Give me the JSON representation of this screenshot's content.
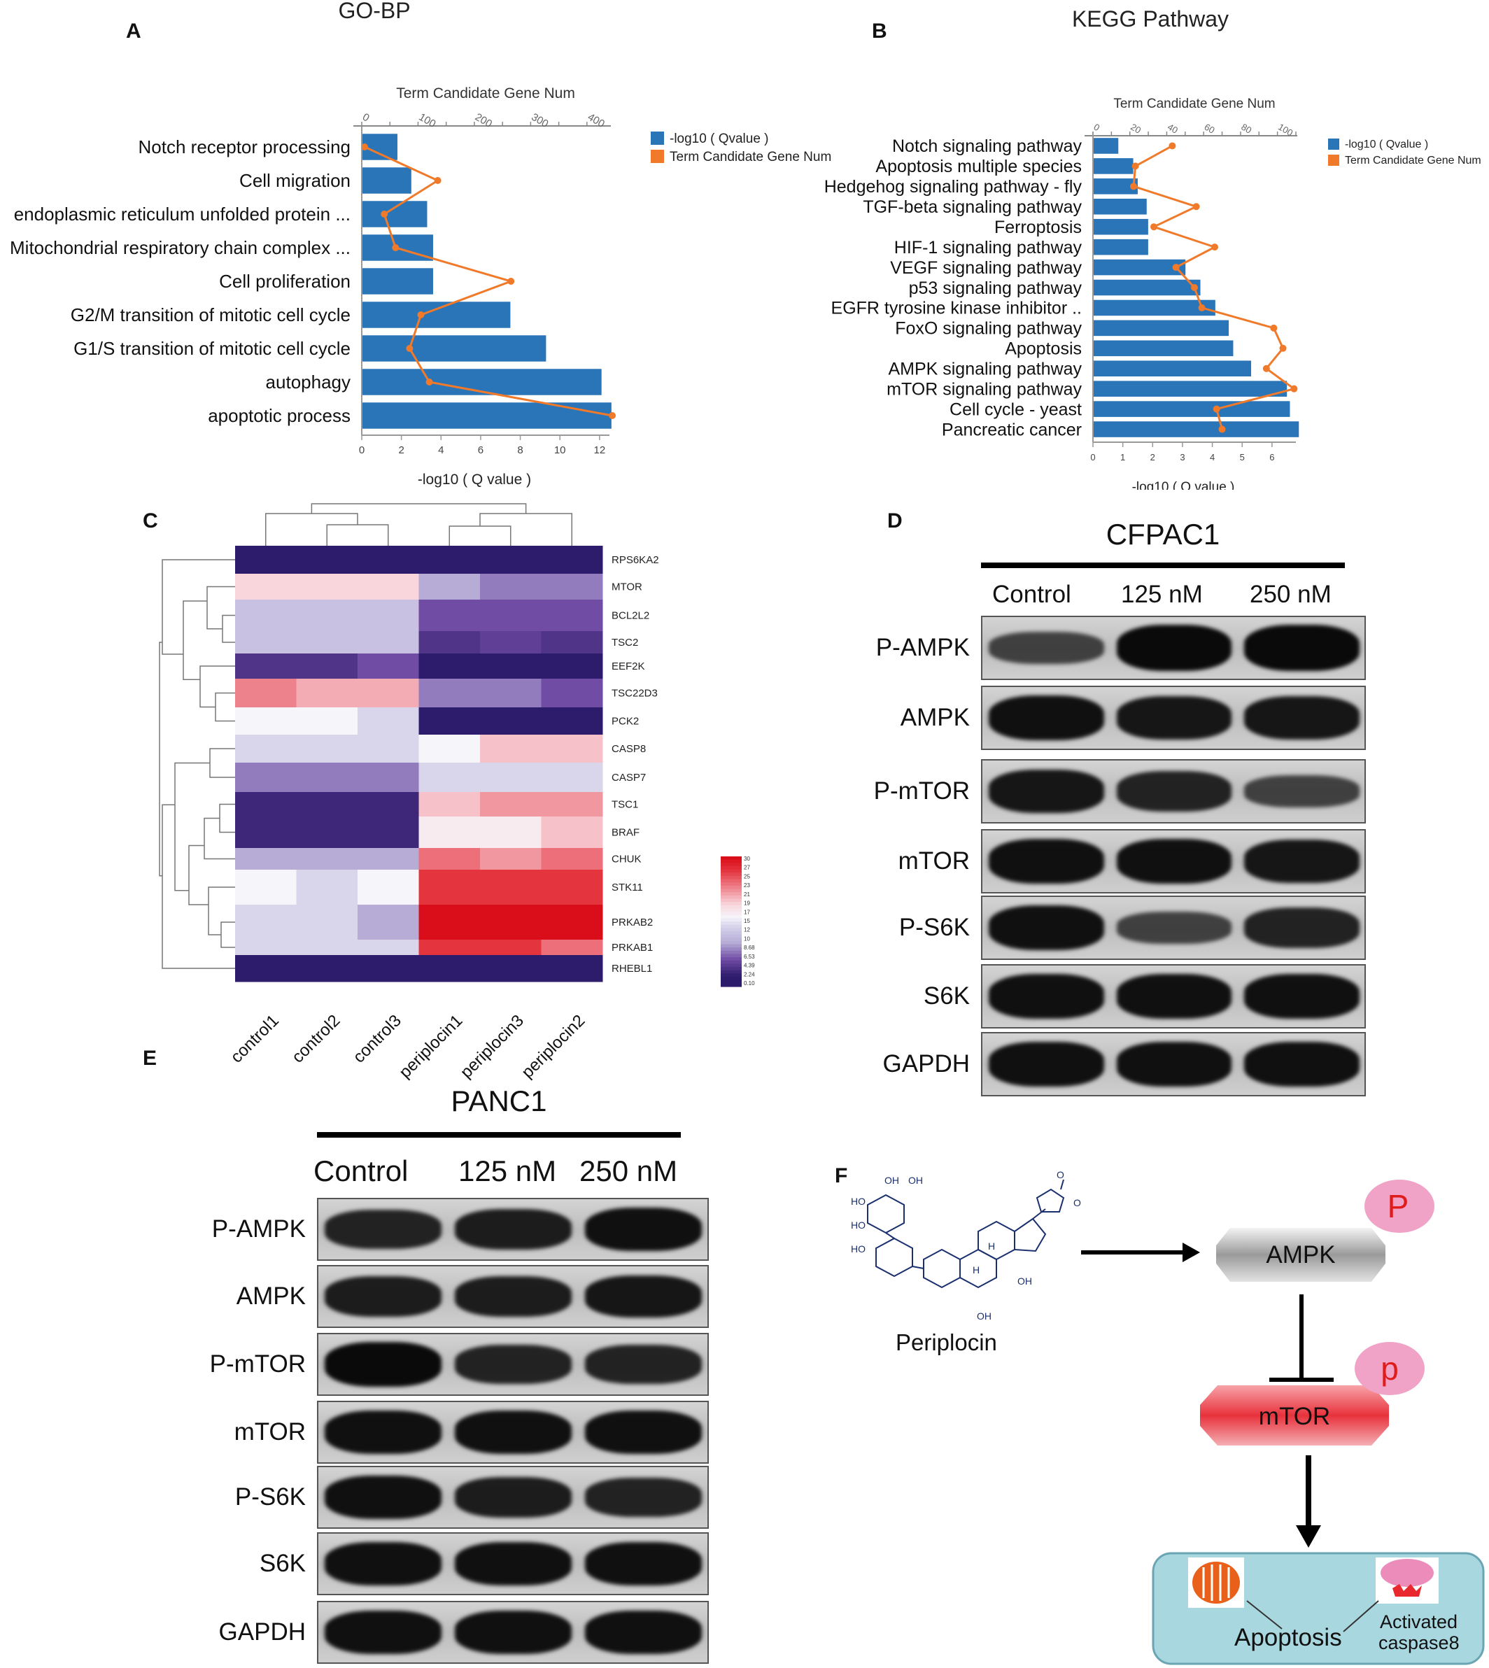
{
  "panels": {
    "A": "A",
    "B": "B",
    "C": "C",
    "D": "D",
    "E": "E",
    "F": "F"
  },
  "chart_data": [
    {
      "type": "bar",
      "panel": "A",
      "title": "GO-BP",
      "xlabel": "-log10 ( Q value )",
      "x2label": "Term Candidate Gene Num",
      "xlim": [
        0,
        12.5
      ],
      "x_ticks": [
        "0",
        "2",
        "4",
        "6",
        "8",
        "10",
        "12"
      ],
      "x2lim": [
        0,
        440
      ],
      "x2_ticks": [
        "0",
        "100",
        "200",
        "300",
        "400"
      ],
      "categories": [
        "Notch receptor processing",
        "Cell migration",
        "endoplasmic reticulum unfolded protein ...",
        "Mitochondrial respiratory chain complex ...",
        "Cell proliferation",
        "G2/M transition of mitotic cell cycle",
        "G1/S transition of mitotic cell cycle",
        "autophagy",
        "apoptotic process"
      ],
      "series": [
        {
          "name": "-log10 ( Qvalue )",
          "values": [
            1.8,
            2.5,
            3.3,
            3.6,
            3.6,
            7.5,
            9.3,
            12.1,
            12.6
          ]
        },
        {
          "name": "Term Candidate Gene Num",
          "values": [
            5,
            135,
            40,
            60,
            265,
            105,
            85,
            120,
            445
          ]
        }
      ],
      "colors": [
        "#2a74b8",
        "#f07a2a"
      ],
      "legend": "top-right"
    },
    {
      "type": "bar",
      "panel": "B",
      "title": "KEGG Pathway",
      "xlabel": "-log10 ( Q value )",
      "x2label": "Term Candidate Gene Num",
      "xlim": [
        0,
        6.8
      ],
      "x_ticks": [
        "0",
        "1",
        "2",
        "3",
        "4",
        "5",
        "6"
      ],
      "x2lim": [
        0,
        110
      ],
      "x2_ticks": [
        "0",
        "20",
        "40",
        "60",
        "80",
        "100"
      ],
      "categories": [
        "Notch signaling pathway",
        "Apoptosis multiple species",
        "Hedgehog signaling pathway - fly",
        "TGF-beta signaling pathway",
        "Ferroptosis",
        "HIF-1 signaling pathway",
        "VEGF signaling pathway",
        "p53 signaling pathway",
        "EGFR tyrosine kinase inhibitor ..",
        "FoxO signaling pathway",
        "Apoptosis",
        "AMPK signaling pathway",
        "mTOR signaling pathway",
        "Cell cycle - yeast",
        "Pancreatic cancer"
      ],
      "series": [
        {
          "name": "-log10 ( Qvalue )",
          "values": [
            0.85,
            1.35,
            1.5,
            1.8,
            1.85,
            1.85,
            3.1,
            3.6,
            4.1,
            4.55,
            4.7,
            5.3,
            6.5,
            6.6,
            6.9
          ]
        },
        {
          "name": "Term Candidate Gene Num",
          "values": [
            43,
            23,
            22,
            56,
            33,
            66,
            45,
            55,
            59,
            98,
            103,
            94,
            109,
            67,
            70
          ]
        }
      ],
      "colors": [
        "#2a74b8",
        "#f07a2a"
      ],
      "legend": "top-right"
    },
    {
      "type": "heatmap",
      "panel": "C",
      "rows": [
        "RPS6KA2",
        "MTOR",
        "BCL2L2",
        "TSC2",
        "EEF2K",
        "TSC22D3",
        "PCK2",
        "CASP8",
        "CASP7",
        "TSC1",
        "BRAF",
        "CHUK",
        "STK11",
        "PRKAB2",
        "PRKAB1",
        "RHEBL1"
      ],
      "columns": [
        "control1",
        "control2",
        "control3",
        "periplocin1",
        "periplocin3",
        "periplocin2"
      ],
      "values": [
        [
          2,
          2,
          2,
          2,
          2,
          2
        ],
        [
          19,
          19,
          19,
          10,
          8,
          8
        ],
        [
          12,
          12,
          12,
          6,
          6,
          6
        ],
        [
          12,
          12,
          12,
          4,
          5,
          4
        ],
        [
          4,
          4,
          6,
          2,
          2,
          2
        ],
        [
          23,
          21,
          21,
          8,
          8,
          6
        ],
        [
          16,
          16,
          14,
          2,
          2,
          2
        ],
        [
          14,
          14,
          14,
          16,
          20,
          20
        ],
        [
          8,
          8,
          8,
          14,
          14,
          14
        ],
        [
          3,
          3,
          3,
          20,
          22,
          22
        ],
        [
          3,
          3,
          3,
          17,
          17,
          20
        ],
        [
          10,
          10,
          10,
          24,
          22,
          24
        ],
        [
          16,
          14,
          16,
          27,
          27,
          27
        ],
        [
          14,
          14,
          10,
          30,
          30,
          30
        ],
        [
          14,
          14,
          14,
          27,
          27,
          24
        ],
        [
          2,
          2,
          2,
          2,
          2,
          2
        ]
      ],
      "colorbar_ticks": [
        "30",
        "27",
        "25",
        "23",
        "21",
        "19",
        "17",
        "15",
        "12",
        "10",
        "8.68",
        "6.53",
        "4.39",
        "2.24",
        "0.10"
      ]
    }
  ],
  "blotD": {
    "title": "CFPAC1",
    "columns": [
      "Control",
      "125 nM",
      "250 nM"
    ],
    "rows": [
      {
        "label": "P-AMPK",
        "intensity": [
          0.55,
          1.0,
          1.0
        ]
      },
      {
        "label": "AMPK",
        "intensity": [
          0.95,
          0.9,
          0.9
        ]
      },
      {
        "label": "P-mTOR",
        "intensity": [
          0.9,
          0.8,
          0.55
        ]
      },
      {
        "label": "mTOR",
        "intensity": [
          0.95,
          0.95,
          0.9
        ]
      },
      {
        "label": "P-S6K",
        "intensity": [
          0.95,
          0.55,
          0.8
        ]
      },
      {
        "label": "S6K",
        "intensity": [
          0.95,
          0.95,
          0.95
        ]
      },
      {
        "label": "GAPDH",
        "intensity": [
          0.95,
          0.95,
          0.95
        ]
      }
    ]
  },
  "blotE": {
    "title": "PANC1",
    "columns": [
      "Control",
      "125 nM",
      "250 nM"
    ],
    "rows": [
      {
        "label": "P-AMPK",
        "intensity": [
          0.8,
          0.85,
          0.95
        ]
      },
      {
        "label": "AMPK",
        "intensity": [
          0.85,
          0.85,
          0.9
        ]
      },
      {
        "label": "P-mTOR",
        "intensity": [
          1.0,
          0.8,
          0.8
        ]
      },
      {
        "label": "mTOR",
        "intensity": [
          0.95,
          0.95,
          0.95
        ]
      },
      {
        "label": "P-S6K",
        "intensity": [
          0.95,
          0.85,
          0.8
        ]
      },
      {
        "label": "S6K",
        "intensity": [
          0.95,
          0.95,
          0.95
        ]
      },
      {
        "label": "GAPDH",
        "intensity": [
          0.95,
          0.95,
          0.95
        ]
      }
    ]
  },
  "schematic": {
    "compound": "Periplocin",
    "ampk": "AMPK",
    "mtor": "mTOR",
    "p1": "P",
    "p2": "p",
    "apoptosis": "Apoptosis",
    "caspase": "Activated caspase8",
    "mol_labels": [
      "HO",
      "OH",
      "OH",
      "HO",
      "HO",
      "H",
      "H",
      "OH",
      "OH",
      "O",
      "O"
    ]
  }
}
